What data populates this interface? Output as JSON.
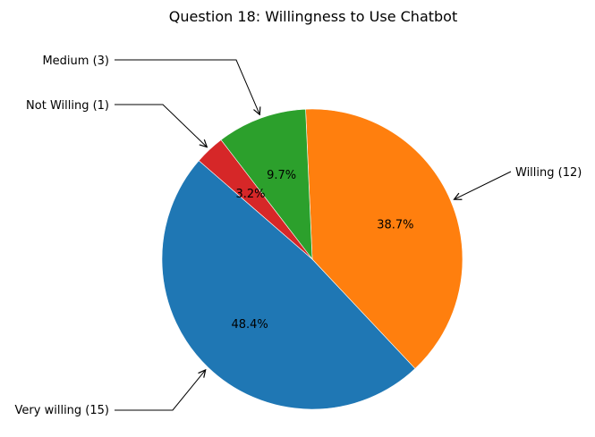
{
  "chart_data": {
    "type": "pie",
    "title": "Question 18: Willingness to Use Chatbot",
    "slices": [
      {
        "label": "Very willing (15)",
        "value": 15,
        "percent_label": "48.4%",
        "color": "#1f77b4"
      },
      {
        "label": "Willing (12)",
        "value": 12,
        "percent_label": "38.7%",
        "color": "#ff7f0e"
      },
      {
        "label": "Medium (3)",
        "value": 3,
        "percent_label": "9.7%",
        "color": "#2ca02c"
      },
      {
        "label": "Not Willing (1)",
        "value": 1,
        "percent_label": "3.2%",
        "color": "#d62728"
      }
    ]
  }
}
